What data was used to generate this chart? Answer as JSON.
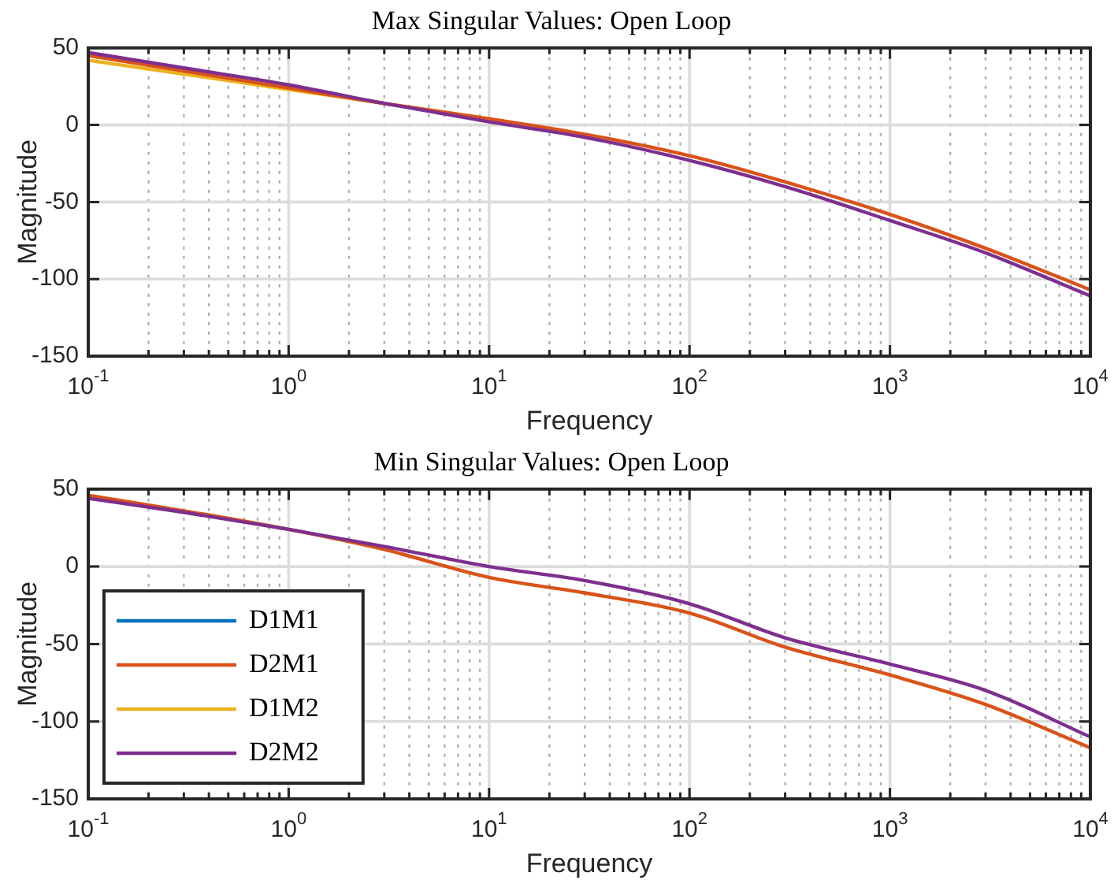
{
  "chart_data": [
    {
      "type": "line",
      "title": "Max Singular Values: Open Loop",
      "xlabel": "Frequency",
      "ylabel": "Magnitude",
      "log": "x",
      "x": [
        0.1,
        0.3,
        1,
        3,
        10,
        30,
        100,
        300,
        1000,
        3000,
        10000
      ],
      "series": [
        {
          "color": "#edb120",
          "values": [
            42,
            33,
            23,
            14,
            null,
            null,
            null,
            null,
            null,
            null,
            null
          ]
        },
        {
          "color": "#d95319",
          "values": [
            45,
            35,
            24,
            14,
            4,
            -6,
            -20,
            -37,
            -58,
            -80,
            -107
          ]
        },
        {
          "color": "#7e2f8e",
          "values": [
            47,
            37,
            26,
            14,
            2,
            -8,
            -23,
            -40,
            -62,
            -83,
            -111
          ]
        }
      ],
      "xlim": [
        0.1,
        10000
      ],
      "ylim": [
        -150,
        50
      ],
      "yticks": [
        -150,
        -100,
        -50,
        0,
        50
      ],
      "xticks": [
        {
          "value": 0.1,
          "label": "10$^{-1}$"
        },
        {
          "value": 0.2,
          "label": null
        },
        {
          "value": 0.3,
          "label": null
        },
        {
          "value": 0.4,
          "label": null
        },
        {
          "value": 0.5,
          "label": null
        },
        {
          "value": 0.6,
          "label": null
        },
        {
          "value": 0.7,
          "label": null
        },
        {
          "value": 0.8,
          "label": null
        },
        {
          "value": 0.9,
          "label": null
        },
        {
          "value": 1,
          "label": "10$^{0}$"
        },
        {
          "value": 2,
          "label": null
        },
        {
          "value": 3,
          "label": null
        },
        {
          "value": 4,
          "label": null
        },
        {
          "value": 5,
          "label": null
        },
        {
          "value": 6,
          "label": null
        },
        {
          "value": 7,
          "label": null
        },
        {
          "value": 8,
          "label": null
        },
        {
          "value": 9,
          "label": null
        },
        {
          "value": 10,
          "label": "10$^{1}$"
        },
        {
          "value": 20,
          "label": null
        },
        {
          "value": 30,
          "label": null
        },
        {
          "value": 40,
          "label": null
        },
        {
          "value": 50,
          "label": null
        },
        {
          "value": 60,
          "label": null
        },
        {
          "value": 70,
          "label": null
        },
        {
          "value": 80,
          "label": null
        },
        {
          "value": 90,
          "label": null
        },
        {
          "value": 100,
          "label": "10$^{2}$"
        },
        {
          "value": 200,
          "label": null
        },
        {
          "value": 300,
          "label": null
        },
        {
          "value": 400,
          "label": null
        },
        {
          "value": 500,
          "label": null
        },
        {
          "value": 600,
          "label": null
        },
        {
          "value": 700,
          "label": null
        },
        {
          "value": 800,
          "label": null
        },
        {
          "value": 900,
          "label": null
        },
        {
          "value": 1000,
          "label": "10$^{3}$"
        },
        {
          "value": 2000,
          "label": null
        },
        {
          "value": 3000,
          "label": null
        },
        {
          "value": 4000,
          "label": null
        },
        {
          "value": 5000,
          "label": null
        },
        {
          "value": 6000,
          "label": null
        },
        {
          "value": 7000,
          "label": null
        },
        {
          "value": 8000,
          "label": null
        },
        {
          "value": 9000,
          "label": null
        },
        {
          "value": 10000,
          "label": "10$^{4}$"
        }
      ],
      "grid": true,
      "legend": false,
      "marker": "none",
      "line_style": "solid"
    },
    {
      "type": "line",
      "title": "Min Singular Values: Open Loop",
      "xlabel": "Frequency",
      "ylabel": "Magnitude",
      "log": "x",
      "x": [
        0.1,
        0.3,
        1,
        3,
        10,
        30,
        100,
        300,
        1000,
        3000,
        10000
      ],
      "series": [
        {
          "name": "D1M1",
          "color": "#0072bd",
          "values": [
            null,
            null,
            null,
            null,
            null,
            null,
            null,
            null,
            null,
            null,
            null
          ]
        },
        {
          "name": "D2M1",
          "color": "#d95319",
          "values": [
            46,
            36,
            24,
            11,
            -7,
            -17,
            -30,
            -52,
            -70,
            -89,
            -117
          ]
        },
        {
          "name": "D1M2",
          "color": "#edb120",
          "values": [
            null,
            null,
            null,
            null,
            null,
            null,
            null,
            null,
            null,
            null,
            null
          ]
        },
        {
          "name": "D2M2",
          "color": "#7e2f8e",
          "values": [
            44,
            35,
            24,
            13,
            0,
            -9,
            -24,
            -46,
            -63,
            -80,
            -110
          ]
        }
      ],
      "xlim": [
        0.1,
        10000
      ],
      "ylim": [
        -150,
        50
      ],
      "yticks": [
        -150,
        -100,
        -50,
        0,
        50
      ],
      "xticks": [
        {
          "value": 0.1,
          "label": "10$^{-1}$"
        },
        {
          "value": 0.2,
          "label": null
        },
        {
          "value": 0.3,
          "label": null
        },
        {
          "value": 0.4,
          "label": null
        },
        {
          "value": 0.5,
          "label": null
        },
        {
          "value": 0.6,
          "label": null
        },
        {
          "value": 0.7,
          "label": null
        },
        {
          "value": 0.8,
          "label": null
        },
        {
          "value": 0.9,
          "label": null
        },
        {
          "value": 1,
          "label": "10$^{0}$"
        },
        {
          "value": 2,
          "label": null
        },
        {
          "value": 3,
          "label": null
        },
        {
          "value": 4,
          "label": null
        },
        {
          "value": 5,
          "label": null
        },
        {
          "value": 6,
          "label": null
        },
        {
          "value": 7,
          "label": null
        },
        {
          "value": 8,
          "label": null
        },
        {
          "value": 9,
          "label": null
        },
        {
          "value": 10,
          "label": "10$^{1}$"
        },
        {
          "value": 20,
          "label": null
        },
        {
          "value": 30,
          "label": null
        },
        {
          "value": 40,
          "label": null
        },
        {
          "value": 50,
          "label": null
        },
        {
          "value": 60,
          "label": null
        },
        {
          "value": 70,
          "label": null
        },
        {
          "value": 80,
          "label": null
        },
        {
          "value": 90,
          "label": null
        },
        {
          "value": 100,
          "label": "10$^{2}$"
        },
        {
          "value": 200,
          "label": null
        },
        {
          "value": 300,
          "label": null
        },
        {
          "value": 400,
          "label": null
        },
        {
          "value": 500,
          "label": null
        },
        {
          "value": 600,
          "label": null
        },
        {
          "value": 700,
          "label": null
        },
        {
          "value": 800,
          "label": null
        },
        {
          "value": 900,
          "label": null
        },
        {
          "value": 1000,
          "label": "10$^{3}$"
        },
        {
          "value": 2000,
          "label": null
        },
        {
          "value": 3000,
          "label": null
        },
        {
          "value": 4000,
          "label": null
        },
        {
          "value": 5000,
          "label": null
        },
        {
          "value": 6000,
          "label": null
        },
        {
          "value": 7000,
          "label": null
        },
        {
          "value": 8000,
          "label": null
        },
        {
          "value": 9000,
          "label": null
        },
        {
          "value": 10000,
          "label": "10$^{4}$"
        }
      ],
      "grid": true,
      "legend": "bottom left",
      "marker": "none",
      "line_style": "solid"
    }
  ]
}
